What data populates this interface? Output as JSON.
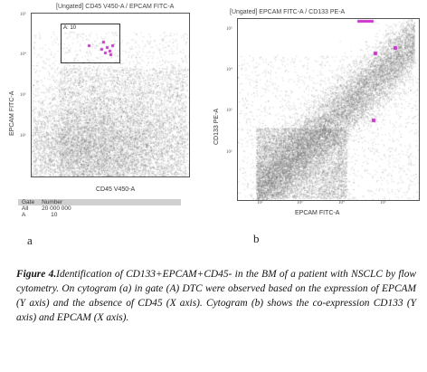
{
  "panel_a": {
    "title": "[Ungated] CD45 V450-A / EPCAM FITC-A",
    "ylabel": "EPCAM FITC-A",
    "xlabel": "CD45 V450-A",
    "y_ticks": [
      "10⁵",
      "10⁴",
      "10³",
      "10²"
    ],
    "gate_label": "A: 10",
    "stats_headers": [
      "Gate",
      "Number"
    ],
    "stats_rows": [
      [
        "All",
        "20 000 000"
      ],
      [
        "A",
        "10"
      ]
    ],
    "panel_label": "a"
  },
  "panel_b": {
    "title": "[Ungated] EPCAM FITC-A / CD133 PE-A",
    "ylabel": "CD133 PE-A",
    "xlabel": "EPCAM FITC-A",
    "y_ticks": [
      "10⁵",
      "10⁴",
      "10³",
      "10²"
    ],
    "x_ticks": [
      "10²",
      "10³",
      "10⁴",
      "10⁵"
    ],
    "panel_label": "b"
  },
  "caption": {
    "figure_label": "Figure 4.",
    "text": "Identification of CD133+EPCAM+CD45- in the BM of a patient with NSCLC by flow cytometry. On cytogram (a) in gate (A) DTC were observed based on the expression of EPCAM (Y axis) and the absence of CD45 (X axis). Cytogram (b) shows the co-expression CD133 (Y axis) and EPCAM (X axis)."
  },
  "colors": {
    "events": "#6b6b6b",
    "gated": "#cc33cc",
    "frame": "#555555"
  }
}
